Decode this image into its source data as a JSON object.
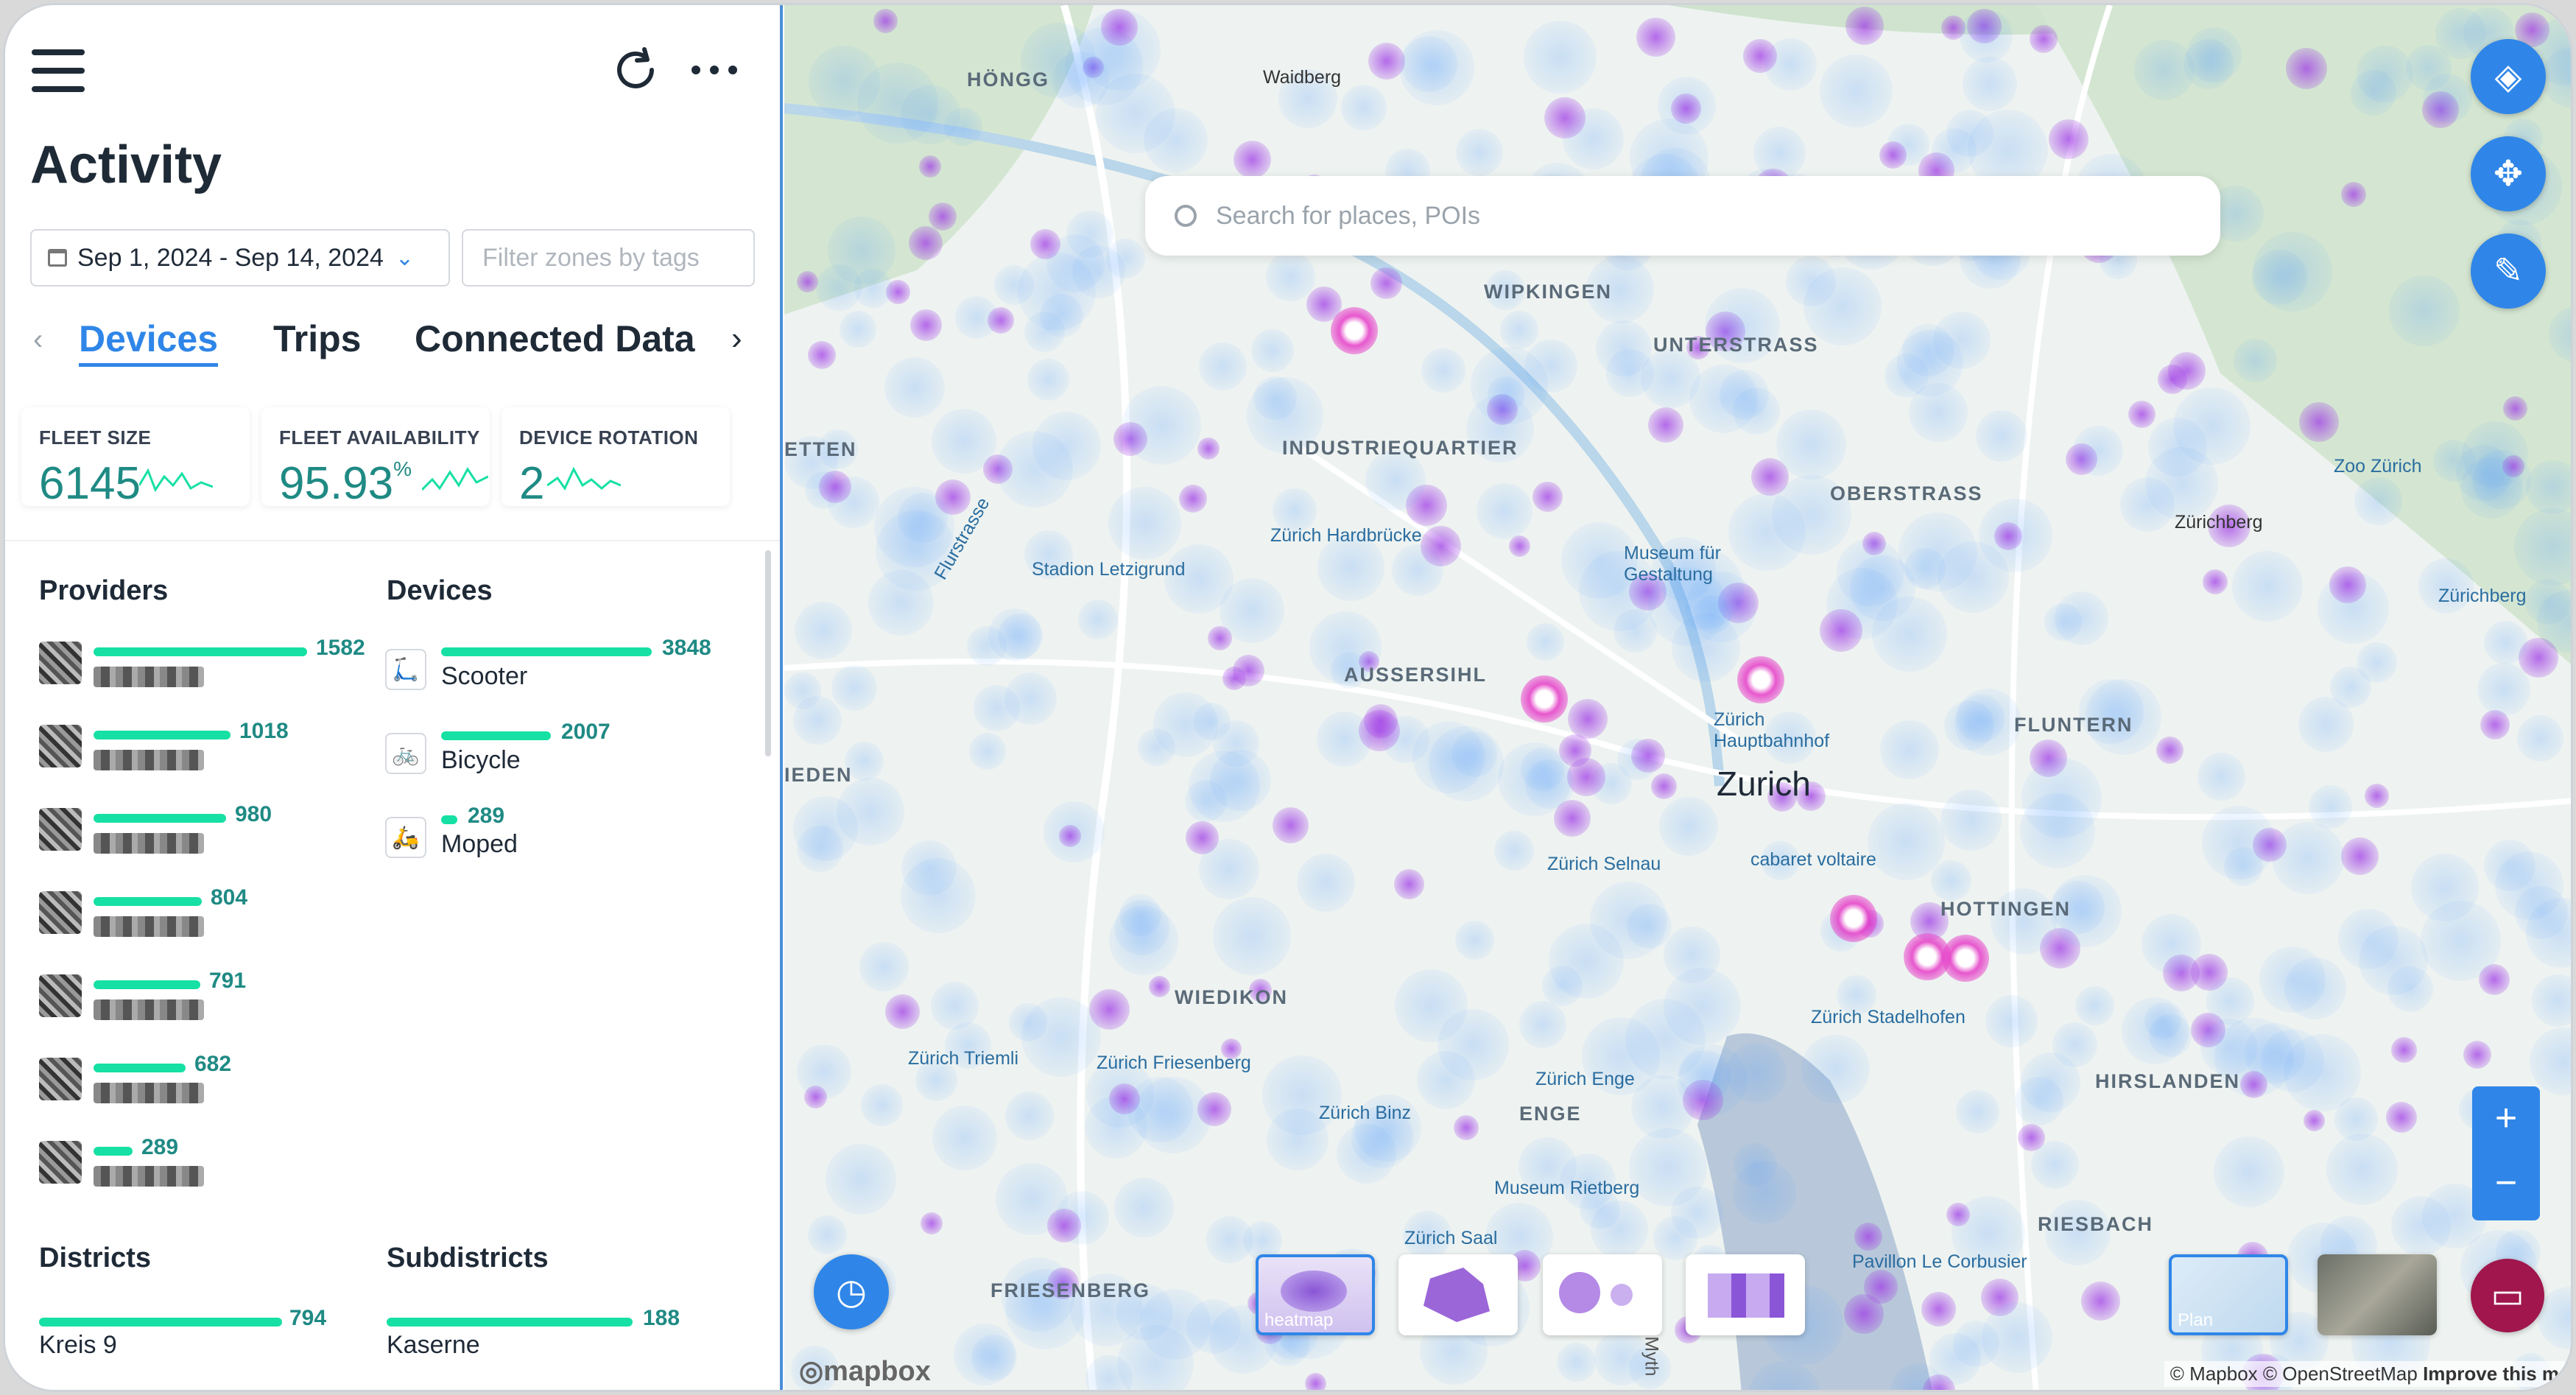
{
  "panel": {
    "title": "Activity",
    "date_range": "Sep 1, 2024 - Sep 14, 2024",
    "filter_placeholder": "Filter zones by tags",
    "tabs": [
      "Devices",
      "Trips",
      "Connected Data"
    ],
    "active_tab": "Devices",
    "kpis": [
      {
        "label": "FLEET SIZE",
        "value": "6145",
        "unit": ""
      },
      {
        "label": "FLEET AVAILABILITY",
        "value": "95.93",
        "unit": "%"
      },
      {
        "label": "DEVICE ROTATION",
        "value": "2",
        "unit": ""
      }
    ],
    "providers": {
      "title": "Providers",
      "items": [
        {
          "value": "1582",
          "fraction": 1.0
        },
        {
          "value": "1018",
          "fraction": 0.643
        },
        {
          "value": "980",
          "fraction": 0.619
        },
        {
          "value": "804",
          "fraction": 0.508
        },
        {
          "value": "791",
          "fraction": 0.5
        },
        {
          "value": "682",
          "fraction": 0.431
        },
        {
          "value": "289",
          "fraction": 0.183
        }
      ]
    },
    "devices": {
      "title": "Devices",
      "items": [
        {
          "name": "Scooter",
          "value": "3848",
          "fraction": 1.0,
          "icon": "scooter-icon"
        },
        {
          "name": "Bicycle",
          "value": "2007",
          "fraction": 0.522,
          "icon": "bicycle-icon"
        },
        {
          "name": "Moped",
          "value": "289",
          "fraction": 0.075,
          "icon": "moped-icon"
        }
      ]
    },
    "districts": {
      "title": "Districts",
      "item": {
        "name": "Kreis 9",
        "value": "794",
        "fraction": 1.0
      }
    },
    "subdistricts": {
      "title": "Subdistricts",
      "item": {
        "name": "Kaserne",
        "value": "188",
        "fraction": 1.0
      }
    }
  },
  "map": {
    "search_placeholder": "Search for places, POIs",
    "area_labels": [
      "HÖNGG",
      "WIPKINGEN",
      "UNTERSTRASS",
      "INDUSTRIEQUARTIER",
      "OBERSTRASS",
      "AUSSERSIHL",
      "FLUNTERN",
      "HOTTINGEN",
      "WIEDIKON",
      "HIRSLANDEN",
      "ENGE",
      "RIESBACH",
      "FRIESENBERG",
      "ETTEN",
      "IEDEN"
    ],
    "poi_labels": [
      "Waidberg",
      "Zoo Zürich",
      "Zürichberg",
      "Zürichberg",
      "Zürich Hardbrücke",
      "Stadion Letzigrund",
      "Museum für Gestaltung",
      "Zürich Hauptbahnhof",
      "Zürich Selnau",
      "cabaret voltaire",
      "Zürich Stadelhofen",
      "Zürich Triemli",
      "Zürich Friesenberg",
      "Zürich Enge",
      "Zürich Binz",
      "Museum Rietberg",
      "Zürich Saal",
      "Pavillon Le Corbusier",
      "Flurstrasse",
      "Myth"
    ],
    "city_label": "Zurich",
    "layer_thumbs": [
      "heatmap",
      "",
      "",
      ""
    ],
    "basemap_thumbs": [
      "Plan",
      ""
    ],
    "logo": "mapbox",
    "attribution": "© Mapbox © OpenStreetMap",
    "improve": "Improve this m"
  }
}
